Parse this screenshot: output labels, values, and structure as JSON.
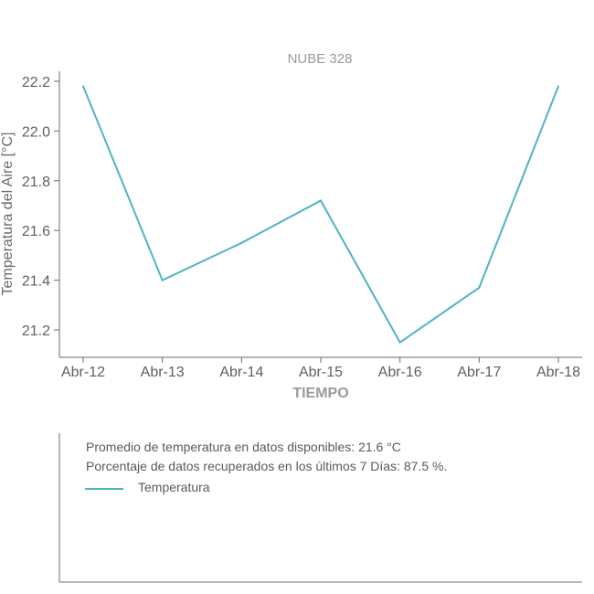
{
  "chart_data": {
    "type": "line",
    "title": "NUBE 328",
    "xlabel": "TIEMPO",
    "ylabel": "Temperatura del Aire [°C]",
    "categories": [
      "Abr-12",
      "Abr-13",
      "Abr-14",
      "Abr-15",
      "Abr-16",
      "Abr-17",
      "Abr-18"
    ],
    "yticks": [
      "21.2",
      "21.4",
      "21.6",
      "21.8",
      "22.0",
      "22.2"
    ],
    "ylim": [
      21.09,
      22.24
    ],
    "grid": false,
    "series": [
      {
        "name": "Temperatura",
        "color": "#4fb3c4",
        "values": [
          22.18,
          21.4,
          21.55,
          21.72,
          21.15,
          21.37,
          22.18
        ]
      }
    ]
  },
  "info": {
    "line1": "Promedio de temperatura en datos disponibles: 21.6 °C",
    "line2": "Porcentaje de datos recuperados en los últimos 7 Días: 87.5 %.",
    "legend_label": "Temperatura"
  }
}
